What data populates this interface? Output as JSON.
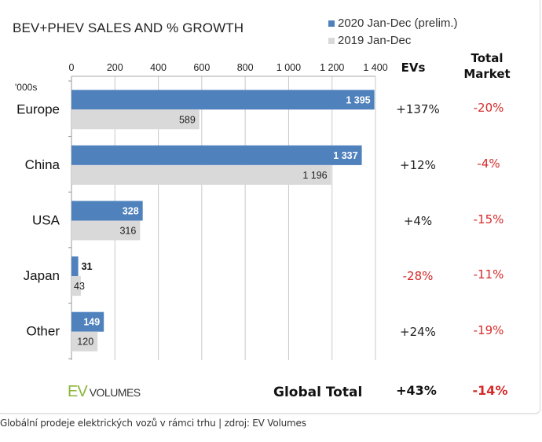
{
  "caption": "Globální prodeje elektrických vozů v rámci trhu | zdroj: EV Volumes",
  "logo": {
    "ev": "EV",
    "volumes": "VOLUMES"
  },
  "colors": {
    "series_2020": "#4f81bd",
    "series_2019": "#d9d9d9",
    "negative": "#d62a2a",
    "positive": "#222222",
    "logo_green": "#8ab53a"
  },
  "columns": {
    "evs": "EVs",
    "total_market_line1": "Total",
    "total_market_line2": "Market"
  },
  "global_total": {
    "label": "Global Total",
    "evs": "+43%",
    "total_market": "-14%"
  },
  "chart_data": {
    "type": "bar",
    "orientation": "horizontal",
    "title": "BEV+PHEV SALES AND % GROWTH",
    "units_label": "'000s",
    "categories": [
      "Europe",
      "China",
      "USA",
      "Japan",
      "Other"
    ],
    "series": [
      {
        "name": "2020 Jan-Dec (prelim.)",
        "values": [
          1395,
          1337,
          328,
          31,
          149
        ],
        "labels": [
          "1 395",
          "1 337",
          "328",
          "31",
          "149"
        ]
      },
      {
        "name": "2019 Jan-Dec",
        "values": [
          589,
          1196,
          316,
          43,
          120
        ],
        "labels": [
          "589",
          "1 196",
          "316",
          "43",
          "120"
        ]
      }
    ],
    "xlim": [
      0,
      1400
    ],
    "xticks": [
      0,
      200,
      400,
      600,
      800,
      1000,
      1200,
      1400
    ],
    "xtick_labels": [
      "0",
      "200",
      "400",
      "600",
      "800",
      "1 000",
      "1 200",
      "1 400"
    ],
    "grid": true,
    "legend": "top-right",
    "growth_evs": [
      "+137%",
      "+12%",
      "+4%",
      "-28%",
      "+24%"
    ],
    "growth_total_market": [
      "-20%",
      "-4%",
      "-15%",
      "-11%",
      "-19%"
    ]
  }
}
